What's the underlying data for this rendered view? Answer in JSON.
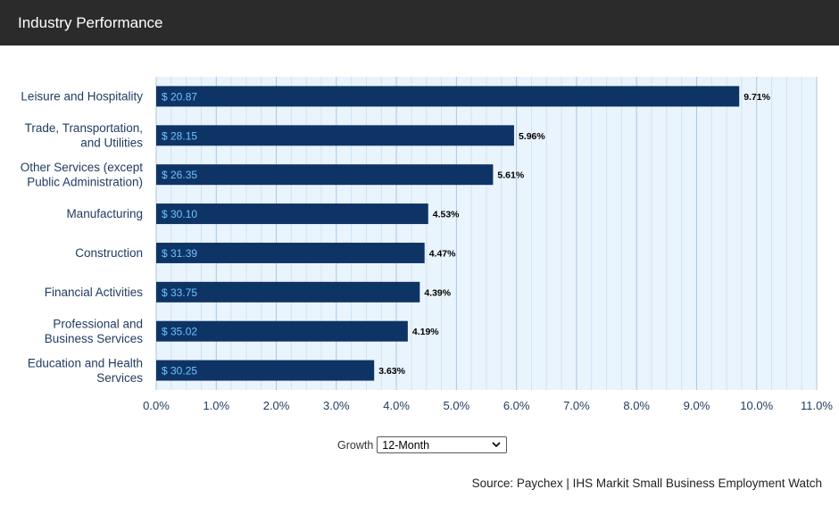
{
  "header": {
    "title": "Industry Performance"
  },
  "chart_data": {
    "type": "bar",
    "orientation": "horizontal",
    "categories": [
      [
        "Leisure and Hospitality"
      ],
      [
        "Trade, Transportation,",
        "and Utilities"
      ],
      [
        "Other Services (except",
        "Public Administration)"
      ],
      [
        "Manufacturing"
      ],
      [
        "Construction"
      ],
      [
        "Financial Activities"
      ],
      [
        "Professional and",
        "Business Services"
      ],
      [
        "Education and Health",
        "Services"
      ]
    ],
    "values": [
      9.71,
      5.96,
      5.61,
      4.53,
      4.47,
      4.39,
      4.19,
      3.63
    ],
    "value_labels": [
      "9.71%",
      "5.96%",
      "5.61%",
      "4.53%",
      "4.47%",
      "4.39%",
      "4.19%",
      "3.63%"
    ],
    "bar_labels": [
      "$ 20.87",
      "$ 28.15",
      "$ 26.35",
      "$ 30.10",
      "$ 31.39",
      "$ 33.75",
      "$ 35.02",
      "$ 30.25"
    ],
    "xlim": [
      0,
      11
    ],
    "xticks": [
      0,
      1,
      2,
      3,
      4,
      5,
      6,
      7,
      8,
      9,
      10,
      11
    ],
    "xtick_labels": [
      "0.0%",
      "1.0%",
      "2.0%",
      "3.0%",
      "4.0%",
      "5.0%",
      "6.0%",
      "7.0%",
      "8.0%",
      "9.0%",
      "10.0%",
      "11.0%"
    ],
    "grid": true,
    "colors": {
      "bar": "#0e3466",
      "plot_background": "#eaf4fd",
      "grid_major": "#a9c6df",
      "grid_minor": "#d1e3f2",
      "bar_label": "#6ec3ff"
    }
  },
  "controls": {
    "growth_label": "Growth",
    "growth_selected": "12-Month"
  },
  "source": "Source: Paychex | IHS Markit Small Business Employment Watch"
}
